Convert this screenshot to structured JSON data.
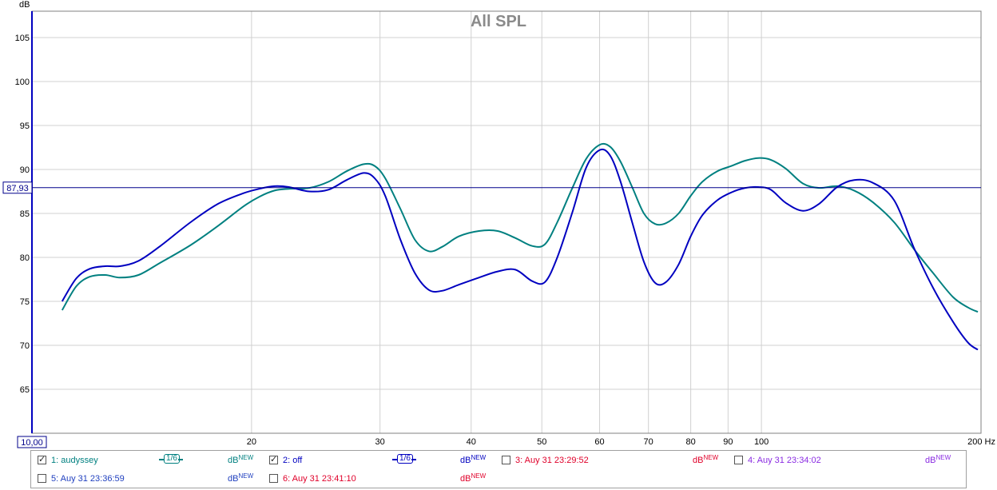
{
  "chart_data": {
    "type": "line",
    "title": "All SPL",
    "ylabel": "dB",
    "x_unit": "Hz",
    "x_scale": "log",
    "xlim": [
      10,
      200
    ],
    "ylim": [
      60,
      108
    ],
    "grid": true,
    "y_ticks": [
      65,
      70,
      75,
      80,
      85,
      90,
      95,
      100,
      105
    ],
    "x_ticks": [
      {
        "value": 20,
        "label": "20"
      },
      {
        "value": 30,
        "label": "30"
      },
      {
        "value": 40,
        "label": "40"
      },
      {
        "value": 50,
        "label": "50"
      },
      {
        "value": 60,
        "label": "60"
      },
      {
        "value": 70,
        "label": "70"
      },
      {
        "value": 80,
        "label": "80"
      },
      {
        "value": 90,
        "label": "90"
      },
      {
        "value": 100,
        "label": "100"
      },
      {
        "value": 200,
        "label": "200 Hz"
      }
    ],
    "x_min_label": "10,00",
    "cursor": {
      "value": 87.93,
      "label": "87,93",
      "color": "#00008b"
    },
    "series": [
      {
        "name": "1: audyssey",
        "color": "#008080",
        "points": [
          [
            11,
            74
          ],
          [
            11.5,
            76.7
          ],
          [
            12,
            77.8
          ],
          [
            12.6,
            78.0
          ],
          [
            13.2,
            77.7
          ],
          [
            14,
            78.0
          ],
          [
            15,
            79.4
          ],
          [
            16.5,
            81.4
          ],
          [
            18,
            83.6
          ],
          [
            19.5,
            85.8
          ],
          [
            20.5,
            86.9
          ],
          [
            21.5,
            87.6
          ],
          [
            22.5,
            87.8
          ],
          [
            24,
            87.9
          ],
          [
            25.5,
            88.6
          ],
          [
            27,
            89.8
          ],
          [
            28.5,
            90.6
          ],
          [
            29.5,
            90.4
          ],
          [
            30.5,
            89
          ],
          [
            32,
            85.5
          ],
          [
            33.5,
            82
          ],
          [
            35,
            80.7
          ],
          [
            36.5,
            81.2
          ],
          [
            38.5,
            82.4
          ],
          [
            41,
            83.0
          ],
          [
            43.5,
            83.0
          ],
          [
            46,
            82.2
          ],
          [
            48.5,
            81.3
          ],
          [
            50.5,
            81.5
          ],
          [
            52.5,
            84
          ],
          [
            55,
            87.8
          ],
          [
            57.5,
            91.2
          ],
          [
            60,
            92.8
          ],
          [
            62,
            92.6
          ],
          [
            64,
            91
          ],
          [
            66.5,
            88
          ],
          [
            69,
            85
          ],
          [
            71.5,
            83.8
          ],
          [
            74,
            83.9
          ],
          [
            77,
            85
          ],
          [
            80,
            87
          ],
          [
            83,
            88.6
          ],
          [
            87,
            89.8
          ],
          [
            91,
            90.4
          ],
          [
            95,
            91.0
          ],
          [
            99,
            91.3
          ],
          [
            103,
            91.1
          ],
          [
            108,
            90.1
          ],
          [
            114,
            88.4
          ],
          [
            120,
            87.9
          ],
          [
            127,
            88.1
          ],
          [
            134,
            87.6
          ],
          [
            142,
            86.3
          ],
          [
            152,
            84
          ],
          [
            162,
            80.9
          ],
          [
            172,
            78.2
          ],
          [
            183,
            75.5
          ],
          [
            192,
            74.3
          ],
          [
            198,
            73.8
          ]
        ]
      },
      {
        "name": "2: off",
        "color": "#0000c0",
        "points": [
          [
            11,
            75
          ],
          [
            11.5,
            77.6
          ],
          [
            12,
            78.7
          ],
          [
            12.6,
            79.0
          ],
          [
            13.2,
            79.0
          ],
          [
            14,
            79.6
          ],
          [
            15,
            81.3
          ],
          [
            16.5,
            84.0
          ],
          [
            18,
            86.1
          ],
          [
            19.5,
            87.3
          ],
          [
            20.5,
            87.8
          ],
          [
            21.5,
            88.1
          ],
          [
            22.5,
            88.0
          ],
          [
            24,
            87.5
          ],
          [
            25.5,
            87.7
          ],
          [
            27,
            88.8
          ],
          [
            28.5,
            89.6
          ],
          [
            29.5,
            89
          ],
          [
            30.5,
            87
          ],
          [
            32,
            82
          ],
          [
            33.5,
            78.2
          ],
          [
            35,
            76.3
          ],
          [
            36.5,
            76.2
          ],
          [
            38.5,
            76.9
          ],
          [
            41,
            77.7
          ],
          [
            43.5,
            78.4
          ],
          [
            46,
            78.6
          ],
          [
            48.5,
            77.3
          ],
          [
            50.5,
            77.2
          ],
          [
            52.5,
            80
          ],
          [
            55,
            85
          ],
          [
            57.5,
            90.2
          ],
          [
            60,
            92.2
          ],
          [
            62,
            91.6
          ],
          [
            64,
            88.8
          ],
          [
            66.5,
            84
          ],
          [
            69,
            79.5
          ],
          [
            71.5,
            77.1
          ],
          [
            74,
            77.2
          ],
          [
            77,
            79.2
          ],
          [
            80,
            82.4
          ],
          [
            83,
            84.8
          ],
          [
            87,
            86.5
          ],
          [
            91,
            87.4
          ],
          [
            95,
            87.9
          ],
          [
            99,
            88.0
          ],
          [
            103,
            87.7
          ],
          [
            108,
            86.2
          ],
          [
            114,
            85.3
          ],
          [
            120,
            86.1
          ],
          [
            127,
            88.0
          ],
          [
            134,
            88.8
          ],
          [
            142,
            88.5
          ],
          [
            152,
            86.5
          ],
          [
            162,
            81
          ],
          [
            172,
            76.5
          ],
          [
            183,
            72.7
          ],
          [
            192,
            70.3
          ],
          [
            198,
            69.5
          ]
        ]
      }
    ]
  },
  "legend": {
    "items": [
      {
        "label": "1: audyssey",
        "checked": true,
        "color": "#008080",
        "smoothing": "1/6",
        "db": "dB",
        "new": "NEW"
      },
      {
        "label": "2: off",
        "checked": true,
        "color": "#0000c0",
        "smoothing": "1/6",
        "db": "dB",
        "new": "NEW"
      },
      {
        "label": "3: Auy 31 23:29:52",
        "checked": false,
        "color": "#e0002a",
        "db": "dB",
        "new": "NEW"
      },
      {
        "label": "4: Auy 31 23:34:02",
        "checked": false,
        "color": "#8a2be2",
        "db": "dB",
        "new": "NEW"
      },
      {
        "label": "5: Auy 31 23:36:59",
        "checked": false,
        "color": "#1f3fbf",
        "db": "dB",
        "new": "NEW"
      },
      {
        "label": "6: Auy 31 23:41:10",
        "checked": false,
        "color": "#e0002a",
        "db": "dB",
        "new": "NEW"
      }
    ]
  }
}
